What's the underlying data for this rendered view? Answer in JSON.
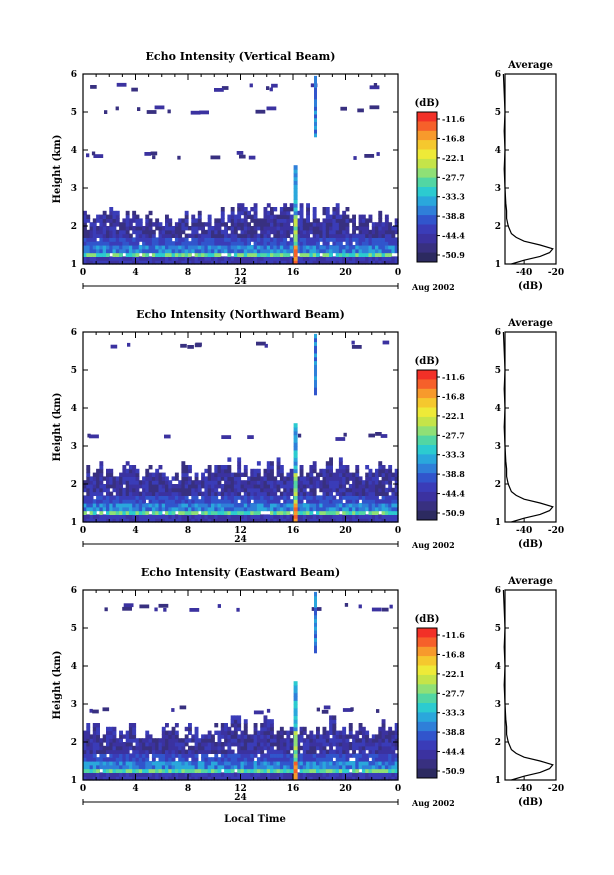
{
  "common": {
    "x_ticks": [
      "0",
      "4",
      "8",
      "12",
      "16",
      "20",
      "0"
    ],
    "day_label": "24",
    "date_label": "Aug 2002",
    "height_ticks": [
      "1",
      "2",
      "3",
      "4",
      "5",
      "6"
    ],
    "ylabel": "Height (km)",
    "colorbar_unit": "(dB)",
    "colorbar_ticks": [
      "-11.6",
      "-16.8",
      "-22.1",
      "-27.7",
      "-33.3",
      "-38.8",
      "-44.4",
      "-50.9"
    ],
    "colorbar_colors": [
      "#f23027",
      "#f6602a",
      "#f79a2c",
      "#f5c82e",
      "#eeea38",
      "#c5e449",
      "#8fe076",
      "#52d6a3",
      "#2ccbd0",
      "#2aa7dc",
      "#2f7fd9",
      "#3155cc",
      "#3a3cb8",
      "#3b32a0",
      "#383080",
      "#2c2a60"
    ],
    "avg_title": "Average",
    "avg_xticks": [
      "-40",
      "-20"
    ],
    "avg_xlabel": "(dB)",
    "xlabel_bottom": "Local Time"
  },
  "chart_data": [
    {
      "type": "heatmap",
      "name": "vertical",
      "title": "Echo Intensity (Vertical Beam)",
      "x_range_hours": [
        0,
        24
      ],
      "y_range_km": [
        1,
        6
      ],
      "boundary_layer_top_km": 2.25,
      "spike_time_h": 16.2,
      "strong_layer_km": [
        1.2,
        1.55
      ],
      "scattered_echo_layers_km": [
        3.9,
        5.1,
        5.7
      ],
      "average_profile": {
        "height_km": [
          1.0,
          1.1,
          1.2,
          1.3,
          1.4,
          1.5,
          1.6,
          1.7,
          1.8,
          2.0,
          2.2,
          2.4,
          2.6,
          3.0,
          3.5,
          4.0,
          4.5,
          5.0,
          5.5,
          6.0
        ],
        "intensity_db": [
          -48,
          -40,
          -30,
          -24,
          -22,
          -30,
          -40,
          -45,
          -48,
          -50,
          -51,
          -51,
          -51.5,
          -52,
          -52.5,
          -52,
          -52.5,
          -52,
          -52.5,
          -53
        ],
        "xlim_db": [
          -52,
          -20
        ]
      }
    },
    {
      "type": "heatmap",
      "name": "northward",
      "title": "Echo Intensity (Northward Beam)",
      "x_range_hours": [
        0,
        24
      ],
      "y_range_km": [
        1,
        6
      ],
      "boundary_layer_top_km": 2.35,
      "spike_time_h": 16.2,
      "strong_layer_km": [
        1.2,
        1.55
      ],
      "scattered_echo_layers_km": [
        3.3,
        5.7
      ],
      "average_profile": {
        "height_km": [
          1.0,
          1.1,
          1.2,
          1.3,
          1.4,
          1.5,
          1.6,
          1.7,
          1.8,
          2.0,
          2.2,
          2.4,
          2.6,
          3.0,
          3.5,
          4.0,
          4.5,
          5.0,
          5.5,
          6.0
        ],
        "intensity_db": [
          -48,
          -40,
          -30,
          -24,
          -22,
          -30,
          -40,
          -45,
          -48,
          -50,
          -51,
          -51,
          -51.5,
          -52,
          -52.5,
          -52,
          -52.5,
          -52,
          -52.5,
          -53
        ],
        "xlim_db": [
          -52,
          -20
        ]
      }
    },
    {
      "type": "heatmap",
      "name": "eastward",
      "title": "Echo Intensity (Eastward Beam)",
      "x_range_hours": [
        0,
        24
      ],
      "y_range_km": [
        1,
        6
      ],
      "boundary_layer_top_km": 2.35,
      "spike_time_h": 16.2,
      "strong_layer_km": [
        1.2,
        1.55
      ],
      "scattered_echo_layers_km": [
        2.9,
        5.6
      ],
      "average_profile": {
        "height_km": [
          1.0,
          1.1,
          1.2,
          1.3,
          1.4,
          1.5,
          1.6,
          1.7,
          1.8,
          2.0,
          2.2,
          2.4,
          2.6,
          3.0,
          3.5,
          4.0,
          4.5,
          5.0,
          5.5,
          6.0
        ],
        "intensity_db": [
          -48,
          -40,
          -30,
          -24,
          -22,
          -30,
          -40,
          -45,
          -48,
          -50,
          -51,
          -51,
          -51.5,
          -52,
          -52.5,
          -52,
          -52.5,
          -52,
          -52.5,
          -53
        ],
        "xlim_db": [
          -52,
          -20
        ]
      }
    }
  ]
}
